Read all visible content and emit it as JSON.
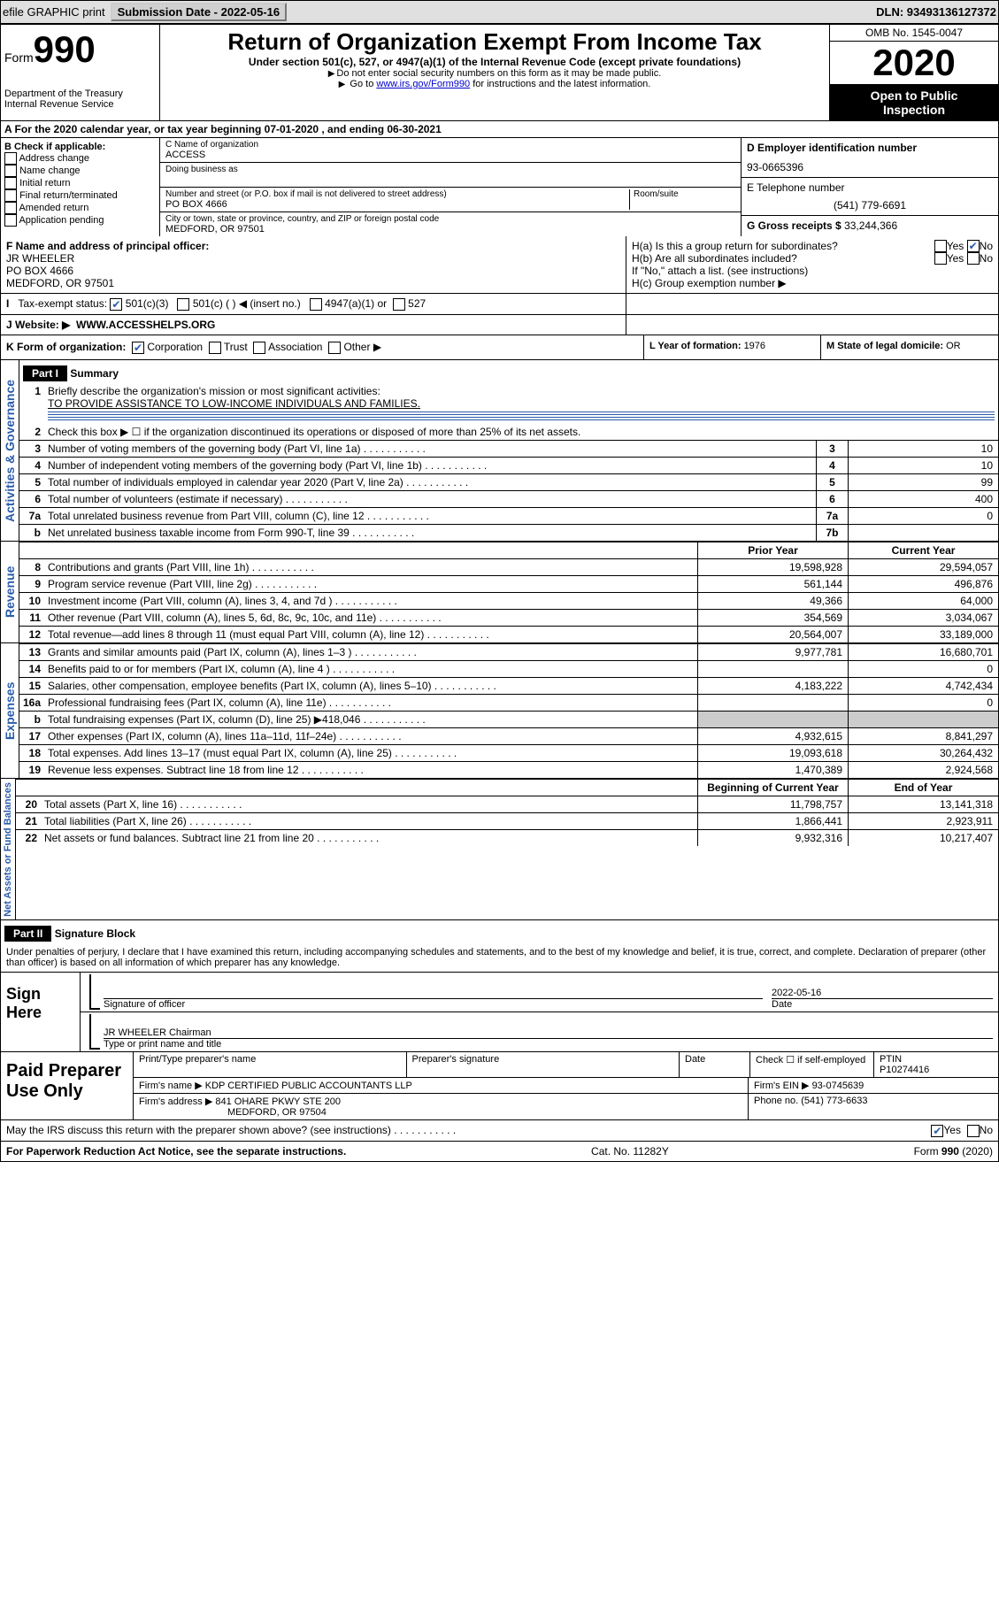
{
  "toolbar": {
    "efile": "efile GRAPHIC print",
    "submission_label": "Submission Date - 2022-05-16",
    "dln": "DLN: 93493136127372"
  },
  "header": {
    "form_label": "Form",
    "form_num": "990",
    "dept": "Department of the Treasury",
    "irs": "Internal Revenue Service",
    "title": "Return of Organization Exempt From Income Tax",
    "subtitle": "Under section 501(c), 527, or 4947(a)(1) of the Internal Revenue Code (except private foundations)",
    "note1": "Do not enter social security numbers on this form as it may be made public.",
    "note2_pre": "Go to ",
    "note2_link": "www.irs.gov/Form990",
    "note2_post": " for instructions and the latest information.",
    "omb": "OMB No. 1545-0047",
    "year": "2020",
    "public1": "Open to Public",
    "public2": "Inspection"
  },
  "row_a": "A For the 2020 calendar year, or tax year beginning 07-01-2020   , and ending 06-30-2021",
  "col_b": {
    "title": "B Check if applicable:",
    "items": [
      "Address change",
      "Name change",
      "Initial return",
      "Final return/terminated",
      "Amended return",
      "Application pending"
    ]
  },
  "col_c": {
    "name_label": "C Name of organization",
    "name": "ACCESS",
    "dba_label": "Doing business as",
    "addr_label": "Number and street (or P.O. box if mail is not delivered to street address)",
    "room_label": "Room/suite",
    "addr": "PO BOX 4666",
    "city_label": "City or town, state or province, country, and ZIP or foreign postal code",
    "city": "MEDFORD, OR  97501"
  },
  "col_d": {
    "ein_label": "D Employer identification number",
    "ein": "93-0665396",
    "tel_label": "E Telephone number",
    "tel": "(541) 779-6691",
    "gross_label": "G Gross receipts $ ",
    "gross": "33,244,366"
  },
  "f": {
    "label": "F Name and address of principal officer:",
    "name": "JR WHEELER",
    "addr1": "PO BOX 4666",
    "addr2": "MEDFORD, OR  97501"
  },
  "h": {
    "ha": "H(a)  Is this a group return for subordinates?",
    "hb": "H(b)  Are all subordinates included?",
    "hb_note": "If \"No,\" attach a list. (see instructions)",
    "hc": "H(c)  Group exemption number ▶",
    "yes": "Yes",
    "no": "No"
  },
  "i": {
    "label": "Tax-exempt status:",
    "opt1": "501(c)(3)",
    "opt2": "501(c) (  ) ◀ (insert no.)",
    "opt3": "4947(a)(1) or",
    "opt4": "527"
  },
  "j": {
    "label": "J    Website: ▶",
    "val": "WWW.ACCESSHELPS.ORG"
  },
  "k": {
    "label": "K Form of organization:",
    "opts": [
      "Corporation",
      "Trust",
      "Association",
      "Other ▶"
    ]
  },
  "l": {
    "label": "L Year of formation: ",
    "val": "1976"
  },
  "m": {
    "label": "M State of legal domicile: ",
    "val": "OR"
  },
  "part1": {
    "hdr": "Part I",
    "title": "Summary",
    "side1": "Activities & Governance",
    "side2": "Revenue",
    "side3": "Expenses",
    "side4": "Net Assets or Fund Balances",
    "l1": "Briefly describe the organization's mission or most significant activities:",
    "l1v": "TO PROVIDE ASSISTANCE TO LOW-INCOME INDIVIDUALS AND FAMILIES.",
    "l2": "Check this box ▶ ☐ if the organization discontinued its operations or disposed of more than 25% of its net assets.",
    "lines_gov": [
      {
        "n": "3",
        "d": "Number of voting members of the governing body (Part VI, line 1a)",
        "c": "3",
        "v": "10"
      },
      {
        "n": "4",
        "d": "Number of independent voting members of the governing body (Part VI, line 1b)",
        "c": "4",
        "v": "10"
      },
      {
        "n": "5",
        "d": "Total number of individuals employed in calendar year 2020 (Part V, line 2a)",
        "c": "5",
        "v": "99"
      },
      {
        "n": "6",
        "d": "Total number of volunteers (estimate if necessary)",
        "c": "6",
        "v": "400"
      },
      {
        "n": "7a",
        "d": "Total unrelated business revenue from Part VIII, column (C), line 12",
        "c": "7a",
        "v": "0"
      },
      {
        "n": "b",
        "d": "Net unrelated business taxable income from Form 990-T, line 39",
        "c": "7b",
        "v": ""
      }
    ],
    "hdr_prior": "Prior Year",
    "hdr_current": "Current Year",
    "lines_rev": [
      {
        "n": "8",
        "d": "Contributions and grants (Part VIII, line 1h)",
        "p": "19,598,928",
        "c": "29,594,057"
      },
      {
        "n": "9",
        "d": "Program service revenue (Part VIII, line 2g)",
        "p": "561,144",
        "c": "496,876"
      },
      {
        "n": "10",
        "d": "Investment income (Part VIII, column (A), lines 3, 4, and 7d )",
        "p": "49,366",
        "c": "64,000"
      },
      {
        "n": "11",
        "d": "Other revenue (Part VIII, column (A), lines 5, 6d, 8c, 9c, 10c, and 11e)",
        "p": "354,569",
        "c": "3,034,067"
      },
      {
        "n": "12",
        "d": "Total revenue—add lines 8 through 11 (must equal Part VIII, column (A), line 12)",
        "p": "20,564,007",
        "c": "33,189,000"
      }
    ],
    "lines_exp": [
      {
        "n": "13",
        "d": "Grants and similar amounts paid (Part IX, column (A), lines 1–3 )",
        "p": "9,977,781",
        "c": "16,680,701"
      },
      {
        "n": "14",
        "d": "Benefits paid to or for members (Part IX, column (A), line 4 )",
        "p": "",
        "c": "0"
      },
      {
        "n": "15",
        "d": "Salaries, other compensation, employee benefits (Part IX, column (A), lines 5–10)",
        "p": "4,183,222",
        "c": "4,742,434"
      },
      {
        "n": "16a",
        "d": "Professional fundraising fees (Part IX, column (A), line 11e)",
        "p": "",
        "c": "0"
      },
      {
        "n": "b",
        "d": "Total fundraising expenses (Part IX, column (D), line 25) ▶418,046",
        "p": "grey",
        "c": "grey"
      },
      {
        "n": "17",
        "d": "Other expenses (Part IX, column (A), lines 11a–11d, 11f–24e)",
        "p": "4,932,615",
        "c": "8,841,297"
      },
      {
        "n": "18",
        "d": "Total expenses. Add lines 13–17 (must equal Part IX, column (A), line 25)",
        "p": "19,093,618",
        "c": "30,264,432"
      },
      {
        "n": "19",
        "d": "Revenue less expenses. Subtract line 18 from line 12",
        "p": "1,470,389",
        "c": "2,924,568"
      }
    ],
    "hdr_begin": "Beginning of Current Year",
    "hdr_end": "End of Year",
    "lines_net": [
      {
        "n": "20",
        "d": "Total assets (Part X, line 16)",
        "p": "11,798,757",
        "c": "13,141,318"
      },
      {
        "n": "21",
        "d": "Total liabilities (Part X, line 26)",
        "p": "1,866,441",
        "c": "2,923,911"
      },
      {
        "n": "22",
        "d": "Net assets or fund balances. Subtract line 21 from line 20",
        "p": "9,932,316",
        "c": "10,217,407"
      }
    ]
  },
  "part2": {
    "hdr": "Part II",
    "title": "Signature Block",
    "penalty": "Under penalties of perjury, I declare that I have examined this return, including accompanying schedules and statements, and to the best of my knowledge and belief, it is true, correct, and complete. Declaration of preparer (other than officer) is based on all information of which preparer has any knowledge.",
    "sign_here": "Sign Here",
    "sig_officer": "Signature of officer",
    "sig_date_label": "Date",
    "sig_date": "2022-05-16",
    "sig_name": "JR WHEELER Chairman",
    "sig_name_label": "Type or print name and title",
    "paid": "Paid Preparer Use Only",
    "prep_name_label": "Print/Type preparer's name",
    "prep_sig_label": "Preparer's signature",
    "date_label": "Date",
    "check_label": "Check ☐ if self-employed",
    "ptin_label": "PTIN",
    "ptin": "P10274416",
    "firm_name_label": "Firm's name     ▶",
    "firm_name": "KDP CERTIFIED PUBLIC ACCOUNTANTS LLP",
    "firm_ein_label": "Firm's EIN ▶",
    "firm_ein": "93-0745639",
    "firm_addr_label": "Firm's address ▶",
    "firm_addr1": "841 OHARE PKWY STE 200",
    "firm_addr2": "MEDFORD, OR  97504",
    "phone_label": "Phone no. ",
    "phone": "(541) 773-6633",
    "discuss": "May the IRS discuss this return with the preparer shown above? (see instructions)"
  },
  "footer": {
    "paperwork": "For Paperwork Reduction Act Notice, see the separate instructions.",
    "cat": "Cat. No. 11282Y",
    "form": "Form 990 (2020)"
  }
}
